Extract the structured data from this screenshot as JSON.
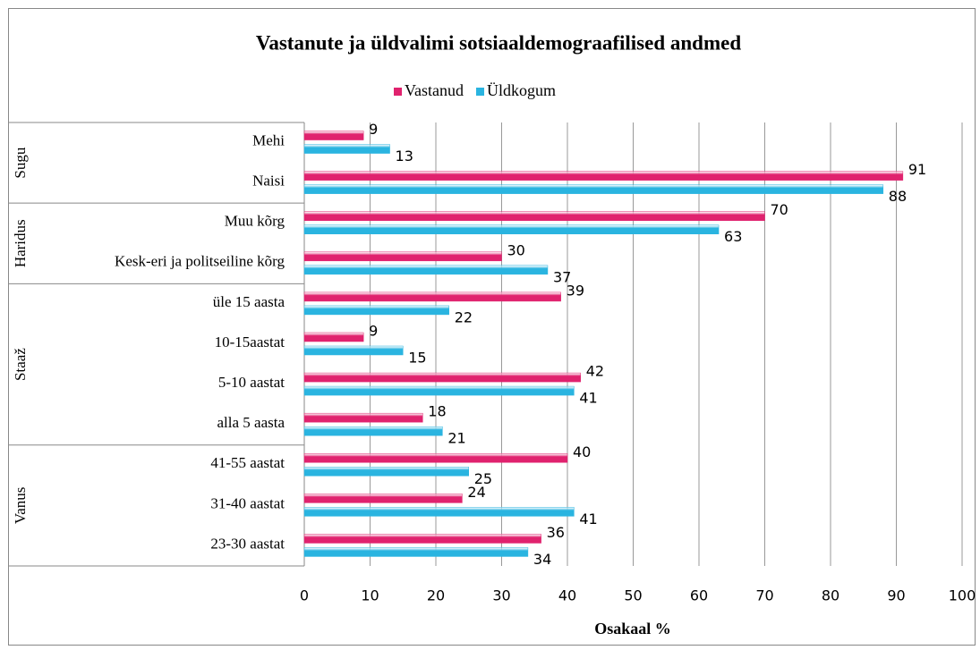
{
  "chart_data": {
    "type": "bar",
    "orientation": "horizontal",
    "title": "Vastanute ja üldvalimi sotsiaaldemograafilised andmed",
    "groups": [
      {
        "name": "Sugu",
        "categories": [
          "Mehi",
          "Naisi"
        ]
      },
      {
        "name": "Haridus",
        "categories": [
          "Muu kõrg",
          "Kesk-eri ja politseiline kõrg"
        ]
      },
      {
        "name": "Staaž",
        "categories": [
          "üle 15 aasta",
          "10-15aastat",
          "5-10 aastat",
          "alla 5 aasta"
        ]
      },
      {
        "name": "Vanus",
        "categories": [
          "41-55 aastat",
          "31-40 aastat",
          "23-30 aastat"
        ]
      }
    ],
    "series": [
      {
        "name": "Vastanud",
        "color": "#e0226e",
        "values": [
          9,
          91,
          70,
          30,
          39,
          9,
          42,
          18,
          40,
          24,
          36
        ]
      },
      {
        "name": "Üldkogum",
        "color": "#2ab4e0",
        "values": [
          13,
          88,
          63,
          37,
          22,
          15,
          41,
          21,
          25,
          41,
          34
        ]
      }
    ],
    "xlabel": "Osakaal %",
    "xlim": [
      0,
      100
    ],
    "xticks": [
      0,
      10,
      20,
      30,
      40,
      50,
      60,
      70,
      80,
      90,
      100
    ],
    "grid": true,
    "legend": "top"
  }
}
